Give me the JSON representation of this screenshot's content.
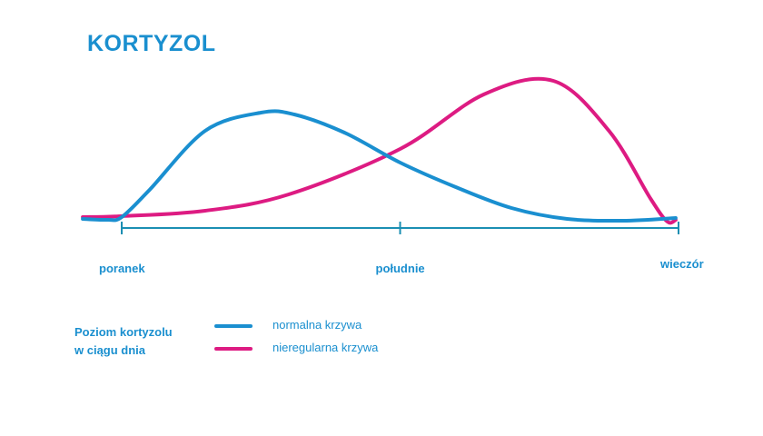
{
  "colors": {
    "text": "#1a8fcf",
    "axis": "#1b8fb3",
    "normal": "#1a8fd0",
    "irregular": "#dd1b82"
  },
  "chart_data": {
    "type": "line",
    "title": "KORTYZOL",
    "x_categories": [
      "poranek",
      "południe",
      "wieczór"
    ],
    "legend": {
      "title_lines": [
        "Poziom kortyzolu",
        "w ciągu dnia"
      ],
      "placement": "bottom-left"
    },
    "grid": false,
    "series": [
      {
        "name": "normalna krzywa",
        "color": "#1a8fd0",
        "x": [
          -0.14,
          -0.05,
          0,
          0.1,
          0.3,
          0.5,
          0.62,
          0.8,
          1,
          1.2,
          1.4,
          1.6,
          1.8,
          1.99
        ],
        "y": [
          3,
          2,
          5,
          35,
          100,
          120,
          118,
          98,
          65,
          38,
          15,
          3,
          1,
          4
        ]
      },
      {
        "name": "nieregularna krzywa",
        "color": "#dd1b82",
        "x": [
          -0.14,
          0,
          0.3,
          0.6,
          1,
          1.3,
          1.55,
          1.75,
          1.9,
          1.96,
          1.99
        ],
        "y": [
          5,
          6,
          12,
          30,
          80,
          140,
          155,
          100,
          25,
          0,
          2
        ]
      }
    ]
  }
}
